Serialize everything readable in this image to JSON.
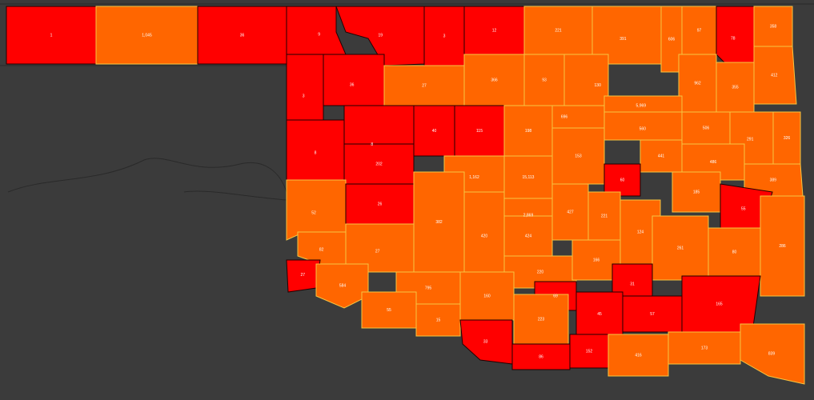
{
  "map": {
    "legend_colors": {
      "low": "#ff0000",
      "high": "#ff6600"
    },
    "counties": [
      {
        "label": "1",
        "level": "low"
      },
      {
        "label": "1,045",
        "level": "high"
      },
      {
        "label": "36",
        "level": "low"
      },
      {
        "label": "9",
        "level": "low"
      },
      {
        "label": "19",
        "level": "low"
      },
      {
        "label": "3",
        "level": "low"
      },
      {
        "label": "12",
        "level": "low"
      },
      {
        "label": "221",
        "level": "high"
      },
      {
        "label": "391",
        "level": "high"
      },
      {
        "label": "606",
        "level": "high"
      },
      {
        "label": "97",
        "level": "high"
      },
      {
        "label": "78",
        "level": "low"
      },
      {
        "label": "358",
        "level": "high"
      },
      {
        "label": "36",
        "level": "low"
      },
      {
        "label": "3",
        "level": "low"
      },
      {
        "label": "27",
        "level": "high"
      },
      {
        "label": "366",
        "level": "high"
      },
      {
        "label": "93",
        "level": "high"
      },
      {
        "label": "130",
        "level": "high"
      },
      {
        "label": "962",
        "level": "high"
      },
      {
        "label": "412",
        "level": "high"
      },
      {
        "label": "355",
        "level": "high"
      },
      {
        "label": "696",
        "level": "high"
      },
      {
        "label": "5,969",
        "level": "high"
      },
      {
        "label": "8",
        "level": "low"
      },
      {
        "label": "40",
        "level": "low"
      },
      {
        "label": "115",
        "level": "low"
      },
      {
        "label": "198",
        "level": "high"
      },
      {
        "label": "560",
        "level": "high"
      },
      {
        "label": "506",
        "level": "high"
      },
      {
        "label": "291",
        "level": "high"
      },
      {
        "label": "326",
        "level": "high"
      },
      {
        "label": "8",
        "level": "low"
      },
      {
        "label": "202",
        "level": "low"
      },
      {
        "label": "1,162",
        "level": "high"
      },
      {
        "label": "15,113",
        "level": "high"
      },
      {
        "label": "153",
        "level": "high"
      },
      {
        "label": "441",
        "level": "high"
      },
      {
        "label": "486",
        "level": "high"
      },
      {
        "label": "60",
        "level": "low"
      },
      {
        "label": "389",
        "level": "high"
      },
      {
        "label": "185",
        "level": "high"
      },
      {
        "label": "52",
        "level": "high"
      },
      {
        "label": "26",
        "level": "low"
      },
      {
        "label": "382",
        "level": "high"
      },
      {
        "label": "2,869",
        "level": "high"
      },
      {
        "label": "427",
        "level": "high"
      },
      {
        "label": "221",
        "level": "high"
      },
      {
        "label": "55",
        "level": "low"
      },
      {
        "label": "82",
        "level": "high"
      },
      {
        "label": "27",
        "level": "high"
      },
      {
        "label": "420",
        "level": "high"
      },
      {
        "label": "424",
        "level": "high"
      },
      {
        "label": "124",
        "level": "high"
      },
      {
        "label": "261",
        "level": "high"
      },
      {
        "label": "80",
        "level": "high"
      },
      {
        "label": "286",
        "level": "high"
      },
      {
        "label": "27",
        "level": "low"
      },
      {
        "label": "584",
        "level": "high"
      },
      {
        "label": "795",
        "level": "high"
      },
      {
        "label": "220",
        "level": "high"
      },
      {
        "label": "166",
        "level": "high"
      },
      {
        "label": "31",
        "level": "low"
      },
      {
        "label": "55",
        "level": "high"
      },
      {
        "label": "15",
        "level": "high"
      },
      {
        "label": "160",
        "level": "high"
      },
      {
        "label": "69",
        "level": "low"
      },
      {
        "label": "45",
        "level": "low"
      },
      {
        "label": "57",
        "level": "low"
      },
      {
        "label": "165",
        "level": "low"
      },
      {
        "label": "33",
        "level": "low"
      },
      {
        "label": "223",
        "level": "high"
      },
      {
        "label": "86",
        "level": "low"
      },
      {
        "label": "152",
        "level": "low"
      },
      {
        "label": "416",
        "level": "high"
      },
      {
        "label": "173",
        "level": "high"
      },
      {
        "label": "839",
        "level": "high"
      }
    ]
  }
}
